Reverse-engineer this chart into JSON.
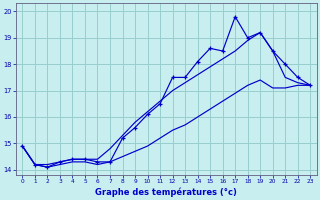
{
  "bg_color": "#c8eef0",
  "plot_bg_color": "#c8eef0",
  "grid_color": "#98cece",
  "line_color": "#0000cc",
  "xlim": [
    -0.5,
    23.5
  ],
  "ylim": [
    13.8,
    20.3
  ],
  "xlabel": "Graphe des températures (°c)",
  "xticks": [
    0,
    1,
    2,
    3,
    4,
    5,
    6,
    7,
    8,
    9,
    10,
    11,
    12,
    13,
    14,
    15,
    16,
    17,
    18,
    19,
    20,
    21,
    22,
    23
  ],
  "yticks": [
    14,
    15,
    16,
    17,
    18,
    19,
    20
  ],
  "hours": [
    0,
    1,
    2,
    3,
    4,
    5,
    6,
    7,
    8,
    9,
    10,
    11,
    12,
    13,
    14,
    15,
    16,
    17,
    18,
    19,
    20,
    21,
    22,
    23
  ],
  "temp_main": [
    14.9,
    14.2,
    14.1,
    14.3,
    14.4,
    14.4,
    14.3,
    14.3,
    15.2,
    15.6,
    16.1,
    16.5,
    17.5,
    17.5,
    18.1,
    18.6,
    18.5,
    19.8,
    19.0,
    19.2,
    18.5,
    18.0,
    17.5,
    17.2
  ],
  "temp_line2": [
    14.9,
    14.2,
    14.2,
    14.3,
    14.4,
    14.4,
    14.4,
    14.8,
    15.3,
    15.8,
    16.2,
    16.6,
    17.0,
    17.3,
    17.6,
    17.9,
    18.2,
    18.5,
    18.9,
    19.2,
    18.5,
    17.5,
    17.3,
    17.2
  ],
  "temp_line3": [
    14.9,
    14.2,
    14.1,
    14.2,
    14.3,
    14.3,
    14.2,
    14.3,
    14.5,
    14.7,
    14.9,
    15.2,
    15.5,
    15.7,
    16.0,
    16.3,
    16.6,
    16.9,
    17.2,
    17.4,
    17.1,
    17.1,
    17.2,
    17.2
  ]
}
